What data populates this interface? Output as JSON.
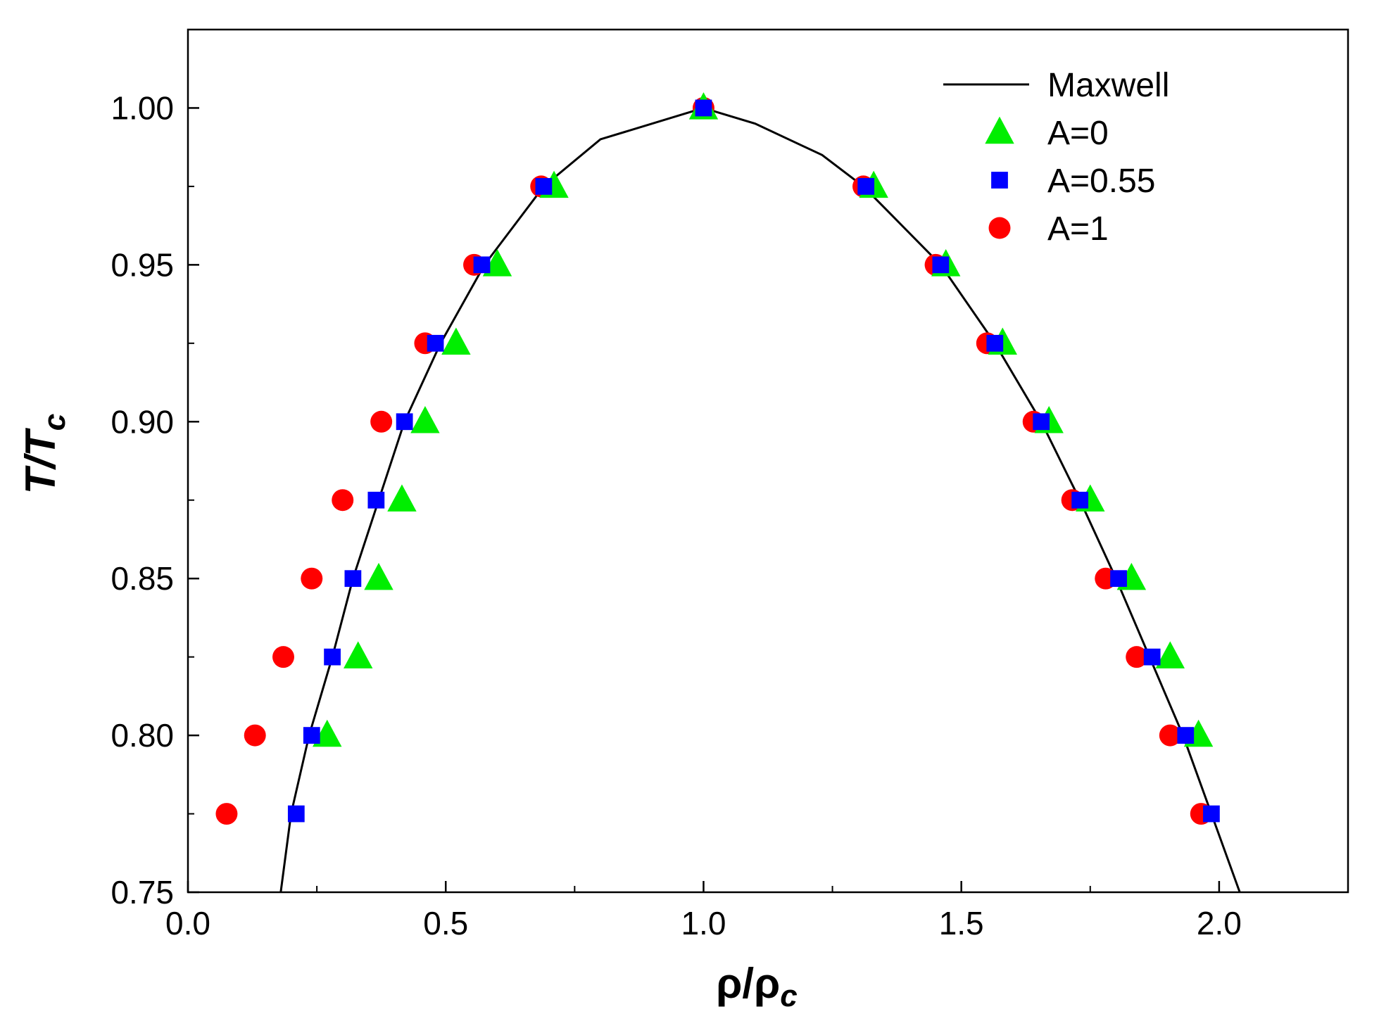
{
  "chart_data": {
    "type": "scatter",
    "xlabel": {
      "main": "ρ/ρ",
      "sub": "c"
    },
    "ylabel": {
      "main": "T/T",
      "sub": "c"
    },
    "xlim": [
      0.0,
      2.25
    ],
    "ylim": [
      0.75,
      1.025
    ],
    "x_ticks": [
      0.0,
      0.5,
      1.0,
      1.5,
      2.0
    ],
    "x_tick_labels": [
      "0.0",
      "0.5",
      "1.0",
      "1.5",
      "2.0"
    ],
    "y_ticks": [
      0.75,
      0.8,
      0.85,
      0.9,
      0.95,
      1.0
    ],
    "y_tick_labels": [
      "0.75",
      "0.80",
      "0.85",
      "0.90",
      "0.95",
      "1.00"
    ],
    "legend_position": "top-right",
    "colors": {
      "maxwell": "#000000",
      "a0": "#00ee00",
      "a055": "#0000ff",
      "a1": "#ff0000"
    },
    "series": [
      {
        "name": "Maxwell",
        "kind": "line",
        "points": [
          [
            0.18,
            0.75
          ],
          [
            0.2,
            0.775
          ],
          [
            0.235,
            0.8
          ],
          [
            0.28,
            0.825
          ],
          [
            0.32,
            0.85
          ],
          [
            0.37,
            0.875
          ],
          [
            0.42,
            0.9
          ],
          [
            0.49,
            0.925
          ],
          [
            0.575,
            0.95
          ],
          [
            0.69,
            0.975
          ],
          [
            0.8,
            0.99
          ],
          [
            1.0,
            1.0
          ],
          [
            1.1,
            0.995
          ],
          [
            1.23,
            0.985
          ],
          [
            1.31,
            0.975
          ],
          [
            1.46,
            0.95
          ],
          [
            1.565,
            0.925
          ],
          [
            1.655,
            0.9
          ],
          [
            1.73,
            0.875
          ],
          [
            1.8,
            0.85
          ],
          [
            1.865,
            0.825
          ],
          [
            1.93,
            0.8
          ],
          [
            1.985,
            0.775
          ],
          [
            2.04,
            0.75
          ]
        ]
      },
      {
        "name": "A=0",
        "kind": "triangle",
        "points": [
          [
            0.27,
            0.8
          ],
          [
            0.33,
            0.825
          ],
          [
            0.37,
            0.85
          ],
          [
            0.415,
            0.875
          ],
          [
            0.46,
            0.9
          ],
          [
            0.52,
            0.925
          ],
          [
            0.6,
            0.95
          ],
          [
            0.71,
            0.975
          ],
          [
            1.0,
            1.0
          ],
          [
            1.33,
            0.975
          ],
          [
            1.47,
            0.95
          ],
          [
            1.58,
            0.925
          ],
          [
            1.67,
            0.9
          ],
          [
            1.75,
            0.875
          ],
          [
            1.83,
            0.85
          ],
          [
            1.905,
            0.825
          ],
          [
            1.96,
            0.8
          ]
        ]
      },
      {
        "name": "A=0.55",
        "kind": "square",
        "points": [
          [
            0.21,
            0.775
          ],
          [
            0.24,
            0.8
          ],
          [
            0.28,
            0.825
          ],
          [
            0.32,
            0.85
          ],
          [
            0.365,
            0.875
          ],
          [
            0.42,
            0.9
          ],
          [
            0.48,
            0.925
          ],
          [
            0.57,
            0.95
          ],
          [
            0.69,
            0.975
          ],
          [
            1.0,
            1.0
          ],
          [
            1.315,
            0.975
          ],
          [
            1.46,
            0.95
          ],
          [
            1.565,
            0.925
          ],
          [
            1.655,
            0.9
          ],
          [
            1.73,
            0.875
          ],
          [
            1.805,
            0.85
          ],
          [
            1.87,
            0.825
          ],
          [
            1.935,
            0.8
          ],
          [
            1.985,
            0.775
          ]
        ]
      },
      {
        "name": "A=1",
        "kind": "circle",
        "points": [
          [
            0.075,
            0.775
          ],
          [
            0.13,
            0.8
          ],
          [
            0.185,
            0.825
          ],
          [
            0.24,
            0.85
          ],
          [
            0.3,
            0.875
          ],
          [
            0.375,
            0.9
          ],
          [
            0.46,
            0.925
          ],
          [
            0.555,
            0.95
          ],
          [
            0.685,
            0.975
          ],
          [
            1.0,
            1.0
          ],
          [
            1.31,
            0.975
          ],
          [
            1.45,
            0.95
          ],
          [
            1.55,
            0.925
          ],
          [
            1.64,
            0.9
          ],
          [
            1.715,
            0.875
          ],
          [
            1.78,
            0.85
          ],
          [
            1.84,
            0.825
          ],
          [
            1.905,
            0.8
          ],
          [
            1.965,
            0.775
          ]
        ]
      }
    ]
  }
}
